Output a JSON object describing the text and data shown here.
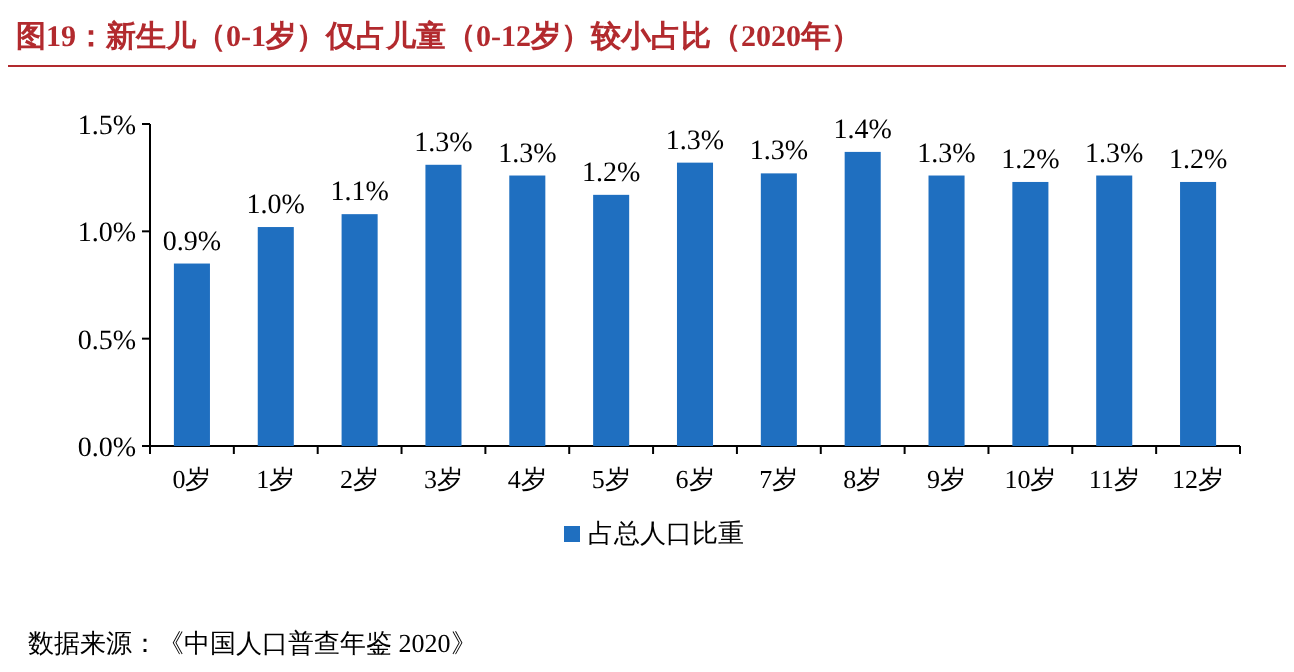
{
  "chart_data": {
    "type": "bar",
    "title": "图19：新生儿（0-1岁）仅占儿童（0-12岁）较小占比（2020年）",
    "categories": [
      "0岁",
      "1岁",
      "2岁",
      "3岁",
      "4岁",
      "5岁",
      "6岁",
      "7岁",
      "8岁",
      "9岁",
      "10岁",
      "11岁",
      "12岁"
    ],
    "series": [
      {
        "name": "占总人口比重",
        "color": "#1f6fc0",
        "values": [
          0.85,
          1.02,
          1.08,
          1.31,
          1.26,
          1.17,
          1.32,
          1.27,
          1.37,
          1.26,
          1.23,
          1.26,
          1.23
        ],
        "value_labels": [
          "0.9%",
          "1.0%",
          "1.1%",
          "1.3%",
          "1.3%",
          "1.2%",
          "1.3%",
          "1.3%",
          "1.4%",
          "1.3%",
          "1.2%",
          "1.3%",
          "1.2%"
        ]
      }
    ],
    "ylim": [
      0,
      1.5
    ],
    "yticks": [
      {
        "value": 0,
        "label": "0.0%"
      },
      {
        "value": 0.5,
        "label": "0.5%"
      },
      {
        "value": 1.0,
        "label": "1.0%"
      },
      {
        "value": 1.5,
        "label": "1.5%"
      }
    ],
    "grid": false,
    "legend": "bottom",
    "annotations": [
      "数据来源：《中国人口普查年鉴 2020》"
    ]
  }
}
